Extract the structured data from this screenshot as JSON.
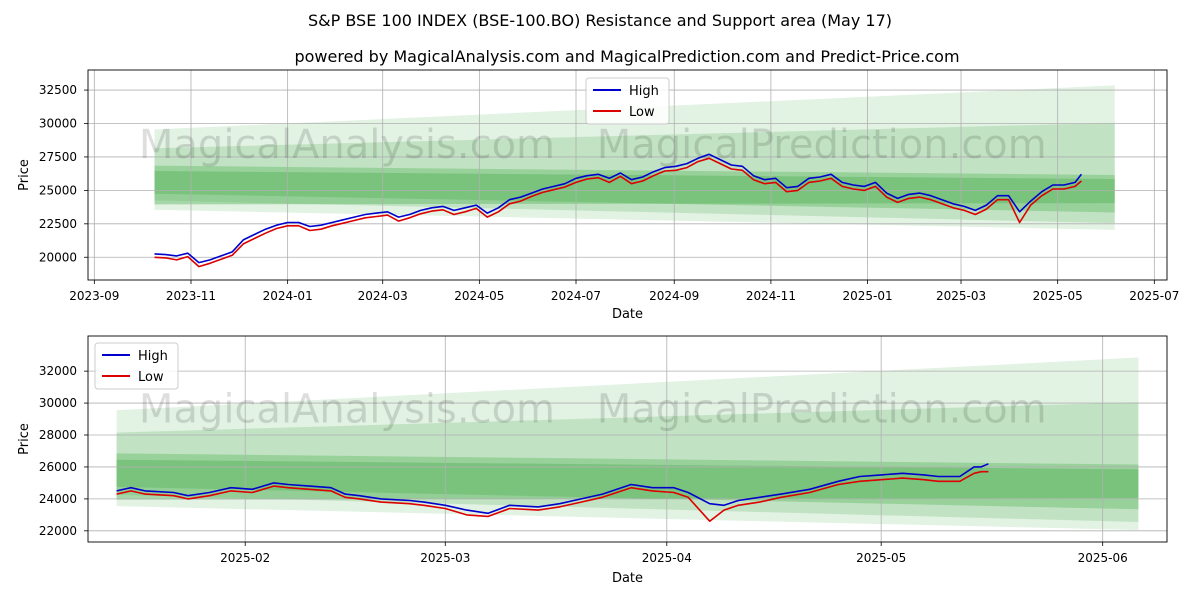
{
  "title": "S&P BSE 100 INDEX (BSE-100.BO) Resistance and Support area (May 17)",
  "subtitle": "powered by MagicalAnalysis.com and MagicalPrediction.com and Predict-Price.com",
  "watermark": [
    "MagicalAnalysis.com",
    "MagicalPrediction.com"
  ],
  "colors": {
    "high": "#0000cc",
    "low": "#dd0000",
    "band": "#4caf50",
    "grid": "#b0b0b0"
  },
  "chart_data": [
    {
      "type": "line",
      "xlabel": "Date",
      "ylabel": "Price",
      "grid": true,
      "legend": "top-center",
      "xlim": [
        "2023-08-28",
        "2025-07-09"
      ],
      "ylim": [
        18300,
        34000
      ],
      "x_ticks": [
        "2023-09",
        "2023-11",
        "2024-01",
        "2024-03",
        "2024-05",
        "2024-07",
        "2024-09",
        "2024-11",
        "2025-01",
        "2025-03",
        "2025-05",
        "2025-07"
      ],
      "y_ticks": [
        20000,
        22500,
        25000,
        27500,
        30000,
        32500
      ],
      "x": [
        "2023-10-09",
        "2023-10-16",
        "2023-10-23",
        "2023-10-30",
        "2023-11-06",
        "2023-11-13",
        "2023-11-20",
        "2023-11-27",
        "2023-12-04",
        "2023-12-11",
        "2023-12-18",
        "2023-12-25",
        "2024-01-01",
        "2024-01-08",
        "2024-01-15",
        "2024-01-22",
        "2024-01-29",
        "2024-02-05",
        "2024-02-12",
        "2024-02-19",
        "2024-02-26",
        "2024-03-04",
        "2024-03-11",
        "2024-03-18",
        "2024-03-25",
        "2024-04-01",
        "2024-04-08",
        "2024-04-15",
        "2024-04-22",
        "2024-04-29",
        "2024-05-06",
        "2024-05-13",
        "2024-05-20",
        "2024-05-27",
        "2024-06-03",
        "2024-06-10",
        "2024-06-17",
        "2024-06-24",
        "2024-07-01",
        "2024-07-08",
        "2024-07-15",
        "2024-07-22",
        "2024-07-29",
        "2024-08-05",
        "2024-08-12",
        "2024-08-19",
        "2024-08-26",
        "2024-09-02",
        "2024-09-09",
        "2024-09-16",
        "2024-09-23",
        "2024-09-30",
        "2024-10-07",
        "2024-10-14",
        "2024-10-21",
        "2024-10-28",
        "2024-11-04",
        "2024-11-11",
        "2024-11-18",
        "2024-11-25",
        "2024-12-02",
        "2024-12-09",
        "2024-12-16",
        "2024-12-23",
        "2024-12-30",
        "2025-01-06",
        "2025-01-13",
        "2025-01-20",
        "2025-01-27",
        "2025-02-03",
        "2025-02-10",
        "2025-02-17",
        "2025-02-24",
        "2025-03-03",
        "2025-03-10",
        "2025-03-17",
        "2025-03-24",
        "2025-03-31",
        "2025-04-07",
        "2025-04-14",
        "2025-04-21",
        "2025-04-28",
        "2025-05-05",
        "2025-05-12",
        "2025-05-16"
      ],
      "series": [
        {
          "name": "High",
          "values": [
            20250,
            20200,
            20100,
            20300,
            19600,
            19800,
            20100,
            20400,
            21300,
            21700,
            22100,
            22400,
            22600,
            22600,
            22300,
            22400,
            22600,
            22800,
            23000,
            23200,
            23300,
            23400,
            23000,
            23200,
            23500,
            23700,
            23800,
            23500,
            23700,
            23900,
            23300,
            23700,
            24300,
            24500,
            24800,
            25100,
            25300,
            25500,
            25900,
            26100,
            26200,
            25900,
            26300,
            25800,
            26000,
            26400,
            26700,
            26800,
            27000,
            27400,
            27700,
            27300,
            26900,
            26800,
            26100,
            25800,
            25900,
            25200,
            25300,
            25900,
            26000,
            26200,
            25600,
            25400,
            25300,
            25600,
            24800,
            24400,
            24700,
            24800,
            24600,
            24300,
            24000,
            23800,
            23500,
            23900,
            24600,
            24600,
            23400,
            24200,
            24900,
            25400,
            25400,
            25600,
            26200
          ]
        },
        {
          "name": "Low",
          "values": [
            20000,
            19950,
            19800,
            20050,
            19300,
            19550,
            19850,
            20150,
            21000,
            21400,
            21800,
            22150,
            22350,
            22350,
            22000,
            22100,
            22350,
            22550,
            22750,
            22950,
            23050,
            23150,
            22700,
            22950,
            23250,
            23450,
            23550,
            23200,
            23400,
            23650,
            23000,
            23400,
            24000,
            24200,
            24550,
            24850,
            25050,
            25250,
            25600,
            25850,
            25950,
            25600,
            26050,
            25500,
            25700,
            26100,
            26450,
            26500,
            26700,
            27150,
            27400,
            27000,
            26600,
            26500,
            25800,
            25500,
            25600,
            24900,
            25000,
            25600,
            25700,
            25900,
            25300,
            25100,
            25000,
            25300,
            24500,
            24100,
            24400,
            24500,
            24300,
            24000,
            23700,
            23500,
            23200,
            23600,
            24300,
            24300,
            22600,
            23900,
            24600,
            25100,
            25100,
            25300,
            25700
          ]
        }
      ]
    },
    {
      "type": "line",
      "xlabel": "Date",
      "ylabel": "Price",
      "grid": true,
      "legend": "top-left",
      "xlim": [
        "2025-01-10",
        "2025-06-10"
      ],
      "ylim": [
        21300,
        34200
      ],
      "x_ticks": [
        "2025-02",
        "2025-03",
        "2025-04",
        "2025-05",
        "2025-06"
      ],
      "y_ticks": [
        22000,
        24000,
        26000,
        28000,
        30000,
        32000
      ],
      "x": [
        "2025-01-14",
        "2025-01-16",
        "2025-01-18",
        "2025-01-22",
        "2025-01-24",
        "2025-01-27",
        "2025-01-30",
        "2025-02-02",
        "2025-02-05",
        "2025-02-07",
        "2025-02-10",
        "2025-02-13",
        "2025-02-15",
        "2025-02-17",
        "2025-02-20",
        "2025-02-24",
        "2025-02-26",
        "2025-03-01",
        "2025-03-04",
        "2025-03-07",
        "2025-03-10",
        "2025-03-14",
        "2025-03-17",
        "2025-03-20",
        "2025-03-23",
        "2025-03-27",
        "2025-03-30",
        "2025-04-02",
        "2025-04-04",
        "2025-04-07",
        "2025-04-09",
        "2025-04-11",
        "2025-04-14",
        "2025-04-17",
        "2025-04-21",
        "2025-04-25",
        "2025-04-28",
        "2025-05-01",
        "2025-05-04",
        "2025-05-07",
        "2025-05-09",
        "2025-05-12",
        "2025-05-14",
        "2025-05-15",
        "2025-05-16"
      ],
      "series": [
        {
          "name": "High",
          "values": [
            24500,
            24700,
            24500,
            24400,
            24200,
            24400,
            24700,
            24600,
            25000,
            24900,
            24800,
            24700,
            24300,
            24200,
            24000,
            23900,
            23800,
            23600,
            23300,
            23100,
            23600,
            23500,
            23700,
            24000,
            24300,
            24900,
            24700,
            24700,
            24400,
            23700,
            23600,
            23900,
            24100,
            24300,
            24600,
            25100,
            25400,
            25500,
            25600,
            25500,
            25400,
            25400,
            26000,
            26000,
            26200
          ]
        },
        {
          "name": "Low",
          "values": [
            24300,
            24500,
            24300,
            24200,
            24000,
            24200,
            24500,
            24400,
            24800,
            24700,
            24600,
            24500,
            24100,
            24000,
            23800,
            23700,
            23600,
            23400,
            23000,
            22900,
            23400,
            23300,
            23500,
            23800,
            24100,
            24700,
            24500,
            24400,
            24100,
            22600,
            23300,
            23600,
            23800,
            24100,
            24400,
            24900,
            25100,
            25200,
            25300,
            25200,
            25100,
            25100,
            25600,
            25700,
            25700
          ]
        }
      ]
    }
  ]
}
